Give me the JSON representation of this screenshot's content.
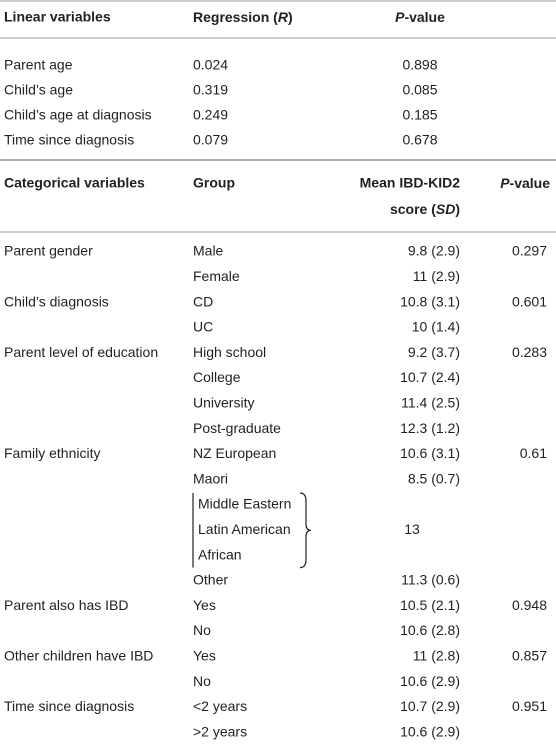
{
  "linear": {
    "header": {
      "variable": "Linear variables",
      "regression": [
        "Regression (",
        "R",
        ")"
      ],
      "p_value": [
        "P",
        "-value"
      ]
    },
    "rows": [
      {
        "variable": "Parent age",
        "regression": "0.024",
        "p_value": "0.898"
      },
      {
        "variable": "Child’s age",
        "regression": "0.319",
        "p_value": "0.085"
      },
      {
        "variable": "Child’s age at diagnosis",
        "regression": "0.249",
        "p_value": "0.185"
      },
      {
        "variable": "Time since diagnosis",
        "regression": "0.079",
        "p_value": "0.678"
      }
    ]
  },
  "categorical": {
    "header": {
      "variable": "Categorical variables",
      "group": "Group",
      "mean_line1": "Mean IBD-KID2",
      "mean_line2": [
        "score (",
        "SD",
        ")"
      ],
      "p_value": [
        "P",
        "-value"
      ]
    },
    "groups": [
      {
        "variable": "Parent gender",
        "p_value": "0.297",
        "rows": [
          {
            "group": "Male",
            "mean": "9.8 (2.9)"
          },
          {
            "group": "Female",
            "mean": "11 (2.9)"
          }
        ]
      },
      {
        "variable": "Child’s diagnosis",
        "p_value": "0.601",
        "rows": [
          {
            "group": "CD",
            "mean": "10.8 (3.1)"
          },
          {
            "group": "UC",
            "mean": "10 (1.4)"
          }
        ]
      },
      {
        "variable": "Parent level of education",
        "p_value": "0.283",
        "rows": [
          {
            "group": "High school",
            "mean": "9.2 (3.7)"
          },
          {
            "group": "College",
            "mean": "10.7 (2.4)"
          },
          {
            "group": "University",
            "mean": "11.4 (2.5)"
          },
          {
            "group": "Post-graduate",
            "mean": "12.3 (1.2)"
          }
        ]
      },
      {
        "variable": "Family ethnicity",
        "p_value": "0.61",
        "rows": [
          {
            "group": "NZ European",
            "mean": "10.6 (3.1)"
          },
          {
            "group": "Maori",
            "mean": "8.5 (0.7)"
          },
          {
            "group": [
              "Middle Eastern",
              "Latin American",
              "African"
            ],
            "mean": "13"
          },
          {
            "group": "Other",
            "mean": "11.3 (0.6)"
          }
        ]
      },
      {
        "variable": "Parent also has IBD",
        "p_value": "0.948",
        "rows": [
          {
            "group": "Yes",
            "mean": "10.5 (2.1)"
          },
          {
            "group": "No",
            "mean": "10.6 (2.8)"
          }
        ]
      },
      {
        "variable": "Other children have IBD",
        "p_value": "0.857",
        "rows": [
          {
            "group": "Yes",
            "mean": "11 (2.8)"
          },
          {
            "group": "No",
            "mean": "10.6 (2.9)"
          }
        ]
      },
      {
        "variable": "Time since diagnosis",
        "p_value": "0.951",
        "rows": [
          {
            "group": "<2 years",
            "mean": "10.7 (2.9)"
          },
          {
            "group": ">2 years",
            "mean": "10.6 (2.9)"
          }
        ]
      }
    ]
  }
}
